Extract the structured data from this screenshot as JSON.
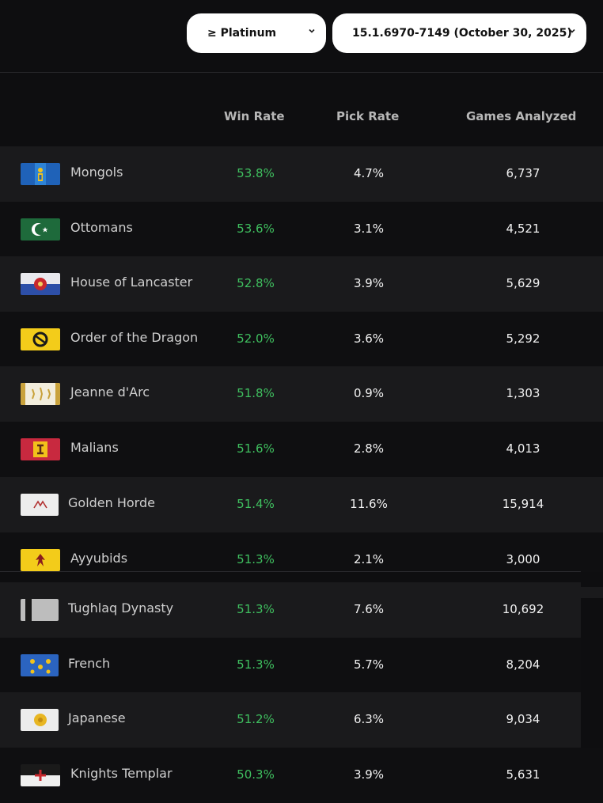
{
  "filters": {
    "rank_label": "≥ Platinum",
    "patch_label": "15.1.6970-7149 (October 30, 2025)"
  },
  "table": {
    "columns": {
      "win_rate": "Win Rate",
      "pick_rate": "Pick Rate",
      "games": "Games Analyzed"
    },
    "rows": [
      {
        "name": "Mongols",
        "win": "53.8%",
        "pick": "4.7%",
        "games": "6,737",
        "flag": "mongols-flag"
      },
      {
        "name": "Ottomans",
        "win": "53.6%",
        "pick": "3.1%",
        "games": "4,521",
        "flag": "ottomans-flag"
      },
      {
        "name": "House of Lancaster",
        "win": "52.8%",
        "pick": "3.9%",
        "games": "5,629",
        "flag": "lancaster-flag"
      },
      {
        "name": "Order of the Dragon",
        "win": "52.0%",
        "pick": "3.6%",
        "games": "5,292",
        "flag": "dragon-flag"
      },
      {
        "name": "Jeanne d'Arc",
        "win": "51.8%",
        "pick": "0.9%",
        "games": "1,303",
        "flag": "jeanne-flag"
      },
      {
        "name": "Malians",
        "win": "51.6%",
        "pick": "2.8%",
        "games": "4,013",
        "flag": "malians-flag"
      },
      {
        "name": "Golden Horde",
        "win": "51.4%",
        "pick": "11.6%",
        "games": "15,914",
        "flag": "golden-horde-flag"
      },
      {
        "name": "Ayyubids",
        "win": "51.3%",
        "pick": "2.1%",
        "games": "3,000",
        "flag": "ayyubids-flag"
      },
      {
        "name": "Tughlaq Dynasty",
        "win": "51.3%",
        "pick": "7.6%",
        "games": "10,692",
        "flag": "tughlaq-flag"
      },
      {
        "name": "French",
        "win": "51.3%",
        "pick": "5.7%",
        "games": "8,204",
        "flag": "french-flag"
      },
      {
        "name": "Japanese",
        "win": "51.2%",
        "pick": "6.3%",
        "games": "9,034",
        "flag": "japanese-flag"
      },
      {
        "name": "Knights Templar",
        "win": "50.3%",
        "pick": "3.9%",
        "games": "5,631",
        "flag": "templar-flag"
      }
    ]
  },
  "colors": {
    "win_rate": "#3fbf5f",
    "row_odd": "#1a1a1c",
    "row_even": "#0f0f11",
    "background": "#0e0e10"
  }
}
